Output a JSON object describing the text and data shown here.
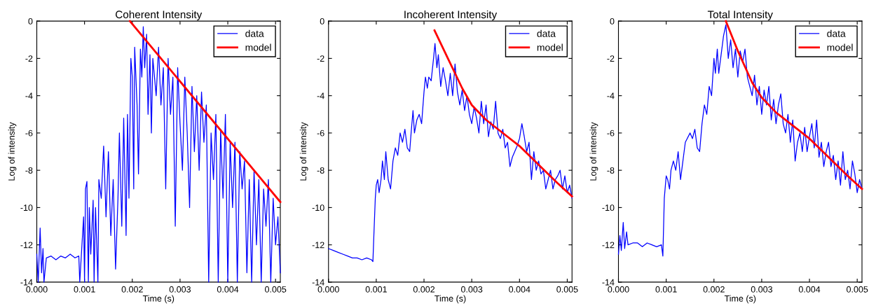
{
  "chart_data": [
    {
      "type": "line",
      "title": "Coherent Intensity",
      "xlabel": "Time (s)",
      "ylabel": "Log of intensity",
      "legend": "top right",
      "grid": false,
      "xlim": [
        0,
        0.0051
      ],
      "ylim": [
        -14,
        0
      ],
      "xticks": [
        {
          "value": 0,
          "label": "0.000"
        },
        {
          "value": 0.001,
          "label": "0.001"
        },
        {
          "value": 0.002,
          "label": "0.002"
        },
        {
          "value": 0.003,
          "label": "0.003"
        },
        {
          "value": 0.004,
          "label": "0.004"
        },
        {
          "value": 0.005,
          "label": "0.005"
        }
      ],
      "yticks": [
        0,
        -2,
        -4,
        -6,
        -8,
        -10,
        -12,
        -14
      ],
      "series": [
        {
          "name": "data",
          "color": "#0000ff",
          "x": [
            0,
            3e-05,
            7e-05,
            0.0001,
            0.00013,
            0.00015,
            0.0002,
            0.0003,
            0.0004,
            0.0005,
            0.0006,
            0.0007,
            0.0008,
            0.00088,
            0.0009,
            0.00098,
            0.001,
            0.00102,
            0.00105,
            0.00108,
            0.0011,
            0.00113,
            0.00118,
            0.0012,
            0.00123,
            0.00128,
            0.0013,
            0.00135,
            0.0014,
            0.00145,
            0.0015,
            0.00155,
            0.0016,
            0.00165,
            0.0017,
            0.00173,
            0.00178,
            0.00182,
            0.00187,
            0.0019,
            0.00193,
            0.00197,
            0.002,
            0.00203,
            0.00205,
            0.0021,
            0.00213,
            0.00217,
            0.0022,
            0.00223,
            0.00226,
            0.0023,
            0.00233,
            0.00237,
            0.0024,
            0.00243,
            0.0025,
            0.00255,
            0.0026,
            0.00265,
            0.0027,
            0.00275,
            0.0028,
            0.00285,
            0.0029,
            0.00295,
            0.003,
            0.00305,
            0.0031,
            0.00315,
            0.0032,
            0.00325,
            0.0033,
            0.00335,
            0.0034,
            0.00345,
            0.0035,
            0.00355,
            0.0036,
            0.00365,
            0.0037,
            0.00375,
            0.0038,
            0.00385,
            0.0039,
            0.00395,
            0.004,
            0.00405,
            0.0041,
            0.00415,
            0.0042,
            0.00425,
            0.0043,
            0.00435,
            0.0044,
            0.00445,
            0.0045,
            0.00455,
            0.0046,
            0.00465,
            0.0047,
            0.00475,
            0.0048,
            0.00485,
            0.0049,
            0.00495,
            0.005,
            0.00505,
            0.0051
          ],
          "values": [
            -12.5,
            -14,
            -11.1,
            -13.5,
            -12.2,
            -14,
            -12.7,
            -12.6,
            -12.8,
            -12.6,
            -12.7,
            -12.5,
            -12.7,
            -12.6,
            -14,
            -10.5,
            -14,
            -9.0,
            -8.6,
            -14,
            -10.0,
            -12.5,
            -9.6,
            -14,
            -10.0,
            -14,
            -8.5,
            -9.5,
            -6.7,
            -10.5,
            -7.0,
            -11.5,
            -8.5,
            -13.3,
            -9.5,
            -6.0,
            -11.0,
            -5.2,
            -11.5,
            -5.0,
            -9.5,
            -2.0,
            -3.0,
            -9.0,
            -1.4,
            -4.5,
            -8.2,
            -1.5,
            -3.0,
            -0.3,
            -2.5,
            -0.7,
            -5.0,
            -1.8,
            -6.0,
            -2.0,
            -4.0,
            -1.4,
            -4.5,
            -2.5,
            -9.0,
            -2.0,
            -5.0,
            -3.0,
            -11.0,
            -2.5,
            -5.5,
            -8.0,
            -3.0,
            -6.0,
            -10.0,
            -3.5,
            -7.0,
            -4.0,
            -8.0,
            -3.8,
            -6.5,
            -4.5,
            -14,
            -6.0,
            -8.5,
            -5.0,
            -14,
            -5.8,
            -9.5,
            -5.0,
            -14,
            -6.5,
            -10.0,
            -6.5,
            -14,
            -7.0,
            -9.0,
            -7.5,
            -13.5,
            -8.5,
            -14,
            -8.0,
            -12.0,
            -8.5,
            -14,
            -9.0,
            -11.0,
            -8.5,
            -14,
            -9.5,
            -12.0,
            -10.5,
            -13.5
          ]
        },
        {
          "name": "model",
          "color": "#ff0000",
          "x": [
            0.00195,
            0.0051
          ],
          "values": [
            0,
            -9.7
          ]
        }
      ]
    },
    {
      "type": "line",
      "title": "Incoherent Intensity",
      "xlabel": "Time (s)",
      "ylabel": "Log of intensity",
      "legend": "top right",
      "grid": false,
      "xlim": [
        0,
        0.0051
      ],
      "ylim": [
        -14,
        0
      ],
      "xticks": [
        {
          "value": 0,
          "label": "0.000"
        },
        {
          "value": 0.001,
          "label": "0.001"
        },
        {
          "value": 0.002,
          "label": "0.002"
        },
        {
          "value": 0.003,
          "label": "0.003"
        },
        {
          "value": 0.004,
          "label": "0.004"
        },
        {
          "value": 0.005,
          "label": "0.005"
        }
      ],
      "yticks": [
        0,
        -2,
        -4,
        -6,
        -8,
        -10,
        -12,
        -14
      ],
      "series": [
        {
          "name": "data",
          "color": "#0000ff",
          "x": [
            0,
            0.0001,
            0.0002,
            0.0003,
            0.0004,
            0.0005,
            0.0006,
            0.0007,
            0.0008,
            0.0009,
            0.00093,
            0.00095,
            0.00098,
            0.001,
            0.00103,
            0.00106,
            0.0011,
            0.00113,
            0.00117,
            0.0012,
            0.00125,
            0.0013,
            0.00135,
            0.0014,
            0.00145,
            0.0015,
            0.00155,
            0.0016,
            0.00165,
            0.0017,
            0.00173,
            0.00177,
            0.0018,
            0.00185,
            0.0019,
            0.00195,
            0.002,
            0.00203,
            0.00207,
            0.0021,
            0.00215,
            0.0022,
            0.00223,
            0.00227,
            0.0023,
            0.00235,
            0.0024,
            0.00245,
            0.0025,
            0.00255,
            0.0026,
            0.00265,
            0.0027,
            0.00275,
            0.0028,
            0.00285,
            0.0029,
            0.00295,
            0.003,
            0.00305,
            0.0031,
            0.00315,
            0.0032,
            0.00325,
            0.0033,
            0.00335,
            0.0034,
            0.00345,
            0.0035,
            0.00355,
            0.0036,
            0.00365,
            0.0037,
            0.00375,
            0.0038,
            0.00385,
            0.0039,
            0.00395,
            0.004,
            0.00405,
            0.0041,
            0.00415,
            0.0042,
            0.00425,
            0.0043,
            0.00435,
            0.0044,
            0.00445,
            0.0045,
            0.00455,
            0.0046,
            0.00465,
            0.0047,
            0.00475,
            0.0048,
            0.00485,
            0.0049,
            0.00495,
            0.005,
            0.00505,
            0.0051
          ],
          "values": [
            -12.2,
            -12.3,
            -12.4,
            -12.5,
            -12.6,
            -12.7,
            -12.7,
            -12.8,
            -12.7,
            -12.8,
            -12.9,
            -11.5,
            -9.5,
            -8.8,
            -8.5,
            -9.2,
            -8.5,
            -7.5,
            -8.5,
            -7.0,
            -8.5,
            -9.0,
            -7.5,
            -6.8,
            -7.2,
            -6.0,
            -6.5,
            -5.8,
            -6.8,
            -7.0,
            -6.0,
            -4.8,
            -6.0,
            -5.3,
            -5.0,
            -5.5,
            -3.8,
            -3.0,
            -3.6,
            -3.0,
            -3.2,
            -2.0,
            -1.2,
            -2.5,
            -1.8,
            -3.5,
            -2.5,
            -3.2,
            -4.0,
            -2.8,
            -4.0,
            -2.3,
            -3.8,
            -4.5,
            -3.7,
            -4.8,
            -4.0,
            -5.0,
            -5.5,
            -4.6,
            -5.2,
            -6.0,
            -4.3,
            -5.5,
            -4.5,
            -6.2,
            -5.4,
            -5.8,
            -4.3,
            -6.0,
            -6.3,
            -5.8,
            -6.8,
            -6.5,
            -7.8,
            -7.3,
            -7.0,
            -6.7,
            -6.3,
            -5.5,
            -6.2,
            -7.0,
            -6.5,
            -8.5,
            -7.0,
            -8.0,
            -7.5,
            -8.2,
            -8.0,
            -9.0,
            -8.5,
            -8.0,
            -9.0,
            -8.5,
            -8.3,
            -8.0,
            -9.0,
            -8.3,
            -9.2,
            -8.8,
            -9.5
          ]
        },
        {
          "name": "model",
          "color": "#ff0000",
          "x": [
            0.00222,
            0.0025,
            0.0028,
            0.003,
            0.0033,
            0.0036,
            0.004,
            0.0044,
            0.0048,
            0.0051
          ],
          "values": [
            -0.5,
            -2.0,
            -3.6,
            -4.5,
            -5.3,
            -5.9,
            -6.7,
            -7.7,
            -8.7,
            -9.4
          ]
        }
      ]
    },
    {
      "type": "line",
      "title": "Total Intensity",
      "xlabel": "Time (s)",
      "ylabel": "Log of intensity",
      "legend": "top right",
      "grid": false,
      "xlim": [
        0,
        0.0051
      ],
      "ylim": [
        -14,
        0
      ],
      "xticks": [
        {
          "value": 0,
          "label": "0.000"
        },
        {
          "value": 0.001,
          "label": "0.001"
        },
        {
          "value": 0.002,
          "label": "0.002"
        },
        {
          "value": 0.003,
          "label": "0.003"
        },
        {
          "value": 0.004,
          "label": "0.004"
        },
        {
          "value": 0.005,
          "label": "0.005"
        }
      ],
      "yticks": [
        0,
        -2,
        -4,
        -6,
        -8,
        -10,
        -12,
        -14
      ],
      "series": [
        {
          "name": "data",
          "color": "#0000ff",
          "x": [
            0,
            3e-05,
            6e-05,
            0.0001,
            0.00013,
            0.00017,
            0.0002,
            0.0003,
            0.0004,
            0.0005,
            0.0006,
            0.0007,
            0.0008,
            0.0009,
            0.00093,
            0.00096,
            0.001,
            0.00103,
            0.00107,
            0.0011,
            0.00115,
            0.0012,
            0.00125,
            0.0013,
            0.00135,
            0.0014,
            0.0015,
            0.00155,
            0.0016,
            0.00165,
            0.0017,
            0.00175,
            0.0018,
            0.00185,
            0.0019,
            0.00195,
            0.002,
            0.00203,
            0.00207,
            0.0021,
            0.00215,
            0.0022,
            0.00225,
            0.0023,
            0.00235,
            0.0024,
            0.00245,
            0.0025,
            0.00255,
            0.0026,
            0.00265,
            0.0027,
            0.00275,
            0.0028,
            0.00285,
            0.0029,
            0.00295,
            0.003,
            0.00305,
            0.0031,
            0.00315,
            0.0032,
            0.00325,
            0.0033,
            0.00335,
            0.0034,
            0.00345,
            0.0035,
            0.00355,
            0.0036,
            0.00365,
            0.0037,
            0.00375,
            0.0038,
            0.00385,
            0.0039,
            0.00395,
            0.004,
            0.00405,
            0.0041,
            0.00415,
            0.0042,
            0.00425,
            0.0043,
            0.00435,
            0.0044,
            0.00445,
            0.0045,
            0.00455,
            0.0046,
            0.00465,
            0.0047,
            0.00475,
            0.0048,
            0.00485,
            0.0049,
            0.00495,
            0.005,
            0.00505,
            0.0051
          ],
          "values": [
            -12.5,
            -11.5,
            -12.3,
            -10.8,
            -12.2,
            -11.3,
            -12.0,
            -11.9,
            -11.9,
            -12.1,
            -11.9,
            -12.0,
            -12.1,
            -12.0,
            -12.6,
            -9.5,
            -8.3,
            -8.5,
            -9.0,
            -8.0,
            -7.5,
            -8.0,
            -7.0,
            -8.5,
            -7.5,
            -6.5,
            -6.0,
            -6.3,
            -5.8,
            -6.8,
            -7.0,
            -5.5,
            -4.5,
            -5.0,
            -3.5,
            -4.0,
            -2.0,
            -2.8,
            -1.5,
            -2.8,
            -1.8,
            -0.8,
            -0.2,
            -2.0,
            -1.0,
            -2.5,
            -1.5,
            -3.0,
            -1.6,
            -2.2,
            -1.5,
            -3.0,
            -3.5,
            -4.0,
            -2.9,
            -4.5,
            -3.5,
            -5.0,
            -3.7,
            -4.5,
            -3.5,
            -5.3,
            -4.2,
            -5.5,
            -4.5,
            -3.9,
            -5.5,
            -6.0,
            -5.0,
            -6.5,
            -5.3,
            -7.5,
            -6.5,
            -6.0,
            -7.0,
            -5.7,
            -7.0,
            -6.2,
            -5.5,
            -6.8,
            -5.3,
            -7.3,
            -6.5,
            -7.8,
            -7.0,
            -6.5,
            -7.8,
            -7.2,
            -8.5,
            -7.5,
            -8.8,
            -7.0,
            -8.5,
            -8.0,
            -9.0,
            -7.5,
            -8.2,
            -9.2,
            -8.5,
            -9.0
          ]
        },
        {
          "name": "model",
          "color": "#ff0000",
          "x": [
            0.00225,
            0.0025,
            0.0028,
            0.003,
            0.0033,
            0.0036,
            0.004,
            0.0044,
            0.0048,
            0.0051
          ],
          "values": [
            0,
            -1.6,
            -3.3,
            -4.1,
            -4.9,
            -5.5,
            -6.3,
            -7.3,
            -8.3,
            -9.0
          ]
        }
      ]
    }
  ]
}
